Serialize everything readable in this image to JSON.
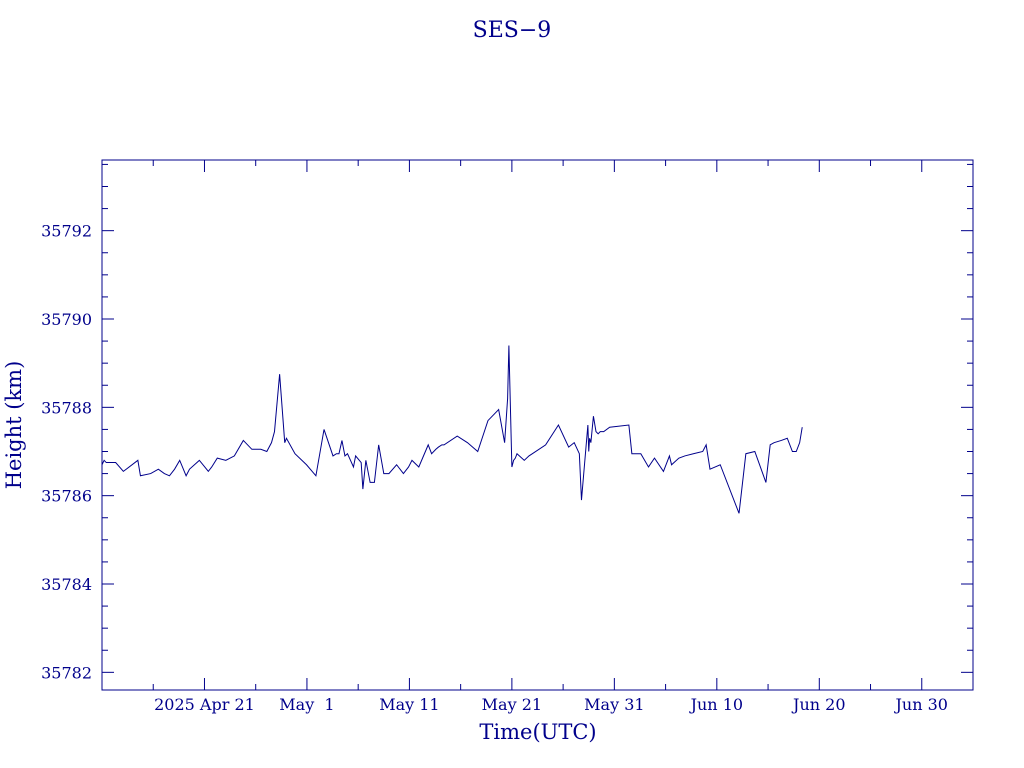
{
  "chart_data": {
    "type": "line",
    "title": "SES−9",
    "xlabel": "Time(UTC)",
    "ylabel": "Height (km)",
    "color": "#00008b",
    "ylim": [
      35781.6,
      35793.6
    ],
    "xlim": [
      "2025-04-11",
      "2025-07-05"
    ],
    "grid": false,
    "y_ticks": [
      35782,
      35784,
      35786,
      35788,
      35790,
      35792
    ],
    "y_tick_labels": [
      "35782",
      "35784",
      "35786",
      "35788",
      "35790",
      "35792"
    ],
    "x_ticks": [
      "2025-04-21",
      "2025-05-01",
      "2025-05-11",
      "2025-05-21",
      "2025-05-31",
      "2025-06-10",
      "2025-06-20",
      "2025-06-30"
    ],
    "x_tick_labels": [
      "2025 Apr 21",
      "May  1",
      "May 11",
      "May 21",
      "May 31",
      "Jun 10",
      "Jun 20",
      "Jun 30"
    ],
    "series": [
      {
        "x": [
          "2025-04-11T00:00",
          "2025-04-11T05:00",
          "2025-04-11T10:00",
          "2025-04-12T08:00",
          "2025-04-13T02:00",
          "2025-04-14T12:00",
          "2025-04-14T18:00",
          "2025-04-15T18:00",
          "2025-04-16T12:00",
          "2025-04-17T02:00",
          "2025-04-17T14:00",
          "2025-04-18T02:00",
          "2025-04-18T14:00",
          "2025-04-19T05:00",
          "2025-04-19T13:00",
          "2025-04-20T12:00",
          "2025-04-21T09:00",
          "2025-04-21T17:00",
          "2025-04-22T06:00",
          "2025-04-23T02:00",
          "2025-04-23T22:00",
          "2025-04-24T19:00",
          "2025-04-25T15:00",
          "2025-04-26T12:00",
          "2025-04-27T02:00",
          "2025-04-27T13:00",
          "2025-04-27T20:00",
          "2025-04-28T08:00",
          "2025-04-28T20:00",
          "2025-04-29T00:00",
          "2025-04-29T20:00",
          "2025-04-30T23:00",
          "2025-05-01T21:00",
          "2025-05-02T16:00",
          "2025-05-03T13:00",
          "2025-05-03T21:00",
          "2025-05-04T03:00",
          "2025-05-04T10:00",
          "2025-05-04T17:00",
          "2025-05-04T23:00",
          "2025-05-05T13:00",
          "2025-05-05T18:00",
          "2025-05-06T07:00",
          "2025-05-06T11:00",
          "2025-05-06T18:00",
          "2025-05-07T04:00",
          "2025-05-07T14:00",
          "2025-05-08T00:00",
          "2025-05-08T12:00",
          "2025-05-09T00:00",
          "2025-05-09T18:00",
          "2025-05-10T10:00",
          "2025-05-10T22:00",
          "2025-05-11T06:00",
          "2025-05-11T22:00",
          "2025-05-12T20:00",
          "2025-05-13T04:00",
          "2025-05-13T14:00",
          "2025-05-13T20:00",
          "2025-05-14T04:00",
          "2025-05-14T09:00",
          "2025-05-15T16:00",
          "2025-05-16T16:00",
          "2025-05-17T16:00",
          "2025-05-18T16:00",
          "2025-05-19T17:00",
          "2025-05-20T07:00",
          "2025-05-20T14:00",
          "2025-05-20T17:00",
          "2025-05-21T00:00",
          "2025-05-21T04:00",
          "2025-05-21T08:00",
          "2025-05-21T12:00",
          "2025-05-22T05:00",
          "2025-05-22T16:00",
          "2025-05-23T00:00",
          "2025-05-24T07:00",
          "2025-05-25T13:00",
          "2025-05-26T13:00",
          "2025-05-27T02:00",
          "2025-05-27T14:00",
          "2025-05-27T19:00",
          "2025-05-28T10:00",
          "2025-05-28T12:00",
          "2025-05-28T14:00",
          "2025-05-28T17:00",
          "2025-05-28T23:00",
          "2025-05-29T05:00",
          "2025-05-29T10:00",
          "2025-05-29T15:00",
          "2025-05-29T23:00",
          "2025-05-30T13:00",
          "2025-06-01T10:00",
          "2025-06-01T17:00",
          "2025-06-02T14:00",
          "2025-06-03T08:00",
          "2025-06-03T22:00",
          "2025-06-04T19:00",
          "2025-06-05T09:00",
          "2025-06-05T14:00",
          "2025-06-06T07:00",
          "2025-06-06T21:00",
          "2025-06-07T17:00",
          "2025-06-08T15:00",
          "2025-06-08T23:00",
          "2025-06-09T08:00",
          "2025-06-10T08:00",
          "2025-06-12T04:00",
          "2025-06-12T20:00",
          "2025-06-13T17:00",
          "2025-06-14T19:00",
          "2025-06-15T05:00",
          "2025-06-15T14:00",
          "2025-06-16T07:00",
          "2025-06-16T21:00",
          "2025-06-17T09:00",
          "2025-06-17T18:00",
          "2025-06-18T02:00",
          "2025-06-18T08:00"
        ],
        "y": [
          35786.7,
          35786.8,
          35786.75,
          35786.75,
          35786.55,
          35786.8,
          35786.45,
          35786.5,
          35786.6,
          35786.5,
          35786.45,
          35786.6,
          35786.8,
          35786.45,
          35786.6,
          35786.8,
          35786.55,
          35786.65,
          35786.85,
          35786.8,
          35786.9,
          35787.25,
          35787.05,
          35787.05,
          35787.0,
          35787.2,
          35787.45,
          35788.75,
          35787.2,
          35787.3,
          35786.95,
          35786.7,
          35786.45,
          35787.5,
          35786.9,
          35786.95,
          35786.95,
          35787.25,
          35786.9,
          35786.95,
          35786.65,
          35786.9,
          35786.75,
          35786.15,
          35786.8,
          35786.3,
          35786.3,
          35787.15,
          35786.5,
          35786.5,
          35786.7,
          35786.5,
          35786.65,
          35786.8,
          35786.65,
          35787.15,
          35786.95,
          35787.05,
          35787.1,
          35787.15,
          35787.15,
          35787.35,
          35787.2,
          35787.0,
          35787.7,
          35787.95,
          35787.2,
          35788.2,
          35789.4,
          35786.65,
          35786.8,
          35786.85,
          35786.95,
          35786.8,
          35786.9,
          35786.95,
          35787.15,
          35787.6,
          35787.1,
          35787.2,
          35786.95,
          35785.9,
          35787.6,
          35787.0,
          35787.3,
          35787.2,
          35787.8,
          35787.45,
          35787.4,
          35787.45,
          35787.45,
          35787.55,
          35787.6,
          35786.95,
          35786.95,
          35786.65,
          35786.85,
          35786.55,
          35786.9,
          35786.7,
          35786.85,
          35786.9,
          35786.95,
          35787.0,
          35787.15,
          35786.6,
          35786.7,
          35785.6,
          35786.95,
          35787.0,
          35786.3,
          35787.15,
          35787.2,
          35787.25,
          35787.3,
          35787.0,
          35787.0,
          35787.2,
          35787.55
        ]
      }
    ]
  }
}
